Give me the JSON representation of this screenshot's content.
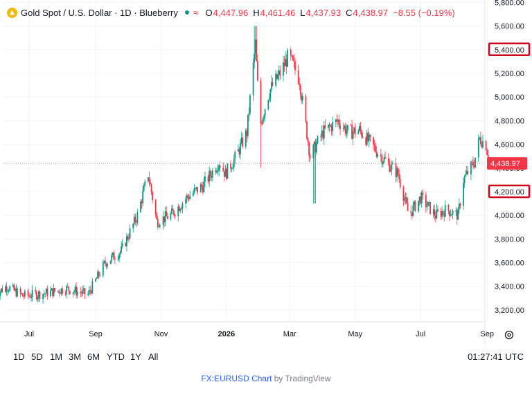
{
  "legend": {
    "title": "Gold Spot / U.S. Dollar · 1D · Blueberry",
    "open_label": "O",
    "open": "4,447.96",
    "high_label": "H",
    "high": "4,461.46",
    "low_label": "L",
    "low": "4,437.93",
    "close_label": "C",
    "close": "4,438.97",
    "change": "−8.55 (−0.19%)"
  },
  "time_ranges": [
    "1D",
    "5D",
    "1M",
    "3M",
    "6M",
    "YTD",
    "1Y",
    "All"
  ],
  "clock": "01:27:41 UTC",
  "footer": {
    "link": "FX:EURUSD Chart",
    "by": " by TradingView"
  },
  "colors": {
    "up": "#089981",
    "down": "#f23645",
    "highlight": "#d0021b",
    "grid": "#f0f3fa"
  },
  "chart_data": {
    "type": "candlestick",
    "y_ticks": [
      "5,800.00",
      "5,600.00",
      "5,400.00",
      "5,200.00",
      "5,000.00",
      "4,800.00",
      "4,600.00",
      "4,400.00",
      "4,200.00",
      "4,000.00",
      "3,800.00",
      "3,600.00",
      "3,400.00",
      "3,200.00"
    ],
    "y_tick_values": [
      5800,
      5600,
      5400,
      5200,
      5000,
      4800,
      4600,
      4400,
      4200,
      4000,
      3800,
      3600,
      3400,
      3200
    ],
    "highlighted_ticks": [
      "5,400.00",
      "4,200.00"
    ],
    "x_ticks": [
      "Jul",
      "Sep",
      "Nov",
      "2026",
      "Mar",
      "May",
      "Jul",
      "Sep"
    ],
    "x_tick_dates": [
      "2025-07-01",
      "2025-09-01",
      "2025-11-01",
      "2026-01-01",
      "2026-03-01",
      "2026-05-01",
      "2026-07-01",
      "2026-09-01"
    ],
    "last_price_label": "4,438.97",
    "last_price": 4438.97,
    "close_path": [
      [
        "2025-05-30",
        3330
      ],
      [
        "2025-06-10",
        3400
      ],
      [
        "2025-06-25",
        3320
      ],
      [
        "2025-07-15",
        3340
      ],
      [
        "2025-08-05",
        3380
      ],
      [
        "2025-08-25",
        3330
      ],
      [
        "2025-09-10",
        3600
      ],
      [
        "2025-09-25",
        3700
      ],
      [
        "2025-10-10",
        4000
      ],
      [
        "2025-10-20",
        4350
      ],
      [
        "2025-10-28",
        3950
      ],
      [
        "2025-11-10",
        4000
      ],
      [
        "2025-11-25",
        4150
      ],
      [
        "2025-12-10",
        4250
      ],
      [
        "2025-12-25",
        4450
      ],
      [
        "2025-12-31",
        4350
      ],
      [
        "2026-01-10",
        4500
      ],
      [
        "2026-01-20",
        4700
      ],
      [
        "2026-01-28",
        5450
      ],
      [
        "2026-02-01",
        4750
      ],
      [
        "2026-02-10",
        5050
      ],
      [
        "2026-02-20",
        5200
      ],
      [
        "2026-02-28",
        5350
      ],
      [
        "2026-03-10",
        5150
      ],
      [
        "2026-03-20",
        4500
      ],
      [
        "2026-04-01",
        4700
      ],
      [
        "2026-04-15",
        4800
      ],
      [
        "2026-04-25",
        4700
      ],
      [
        "2026-05-05",
        4720
      ],
      [
        "2026-05-25",
        4500
      ],
      [
        "2026-06-10",
        4350
      ],
      [
        "2026-06-20",
        4000
      ],
      [
        "2026-07-01",
        4150
      ],
      [
        "2026-07-15",
        4000
      ],
      [
        "2026-07-25",
        4050
      ],
      [
        "2026-08-05",
        4000
      ],
      [
        "2026-08-10",
        4300
      ],
      [
        "2026-08-20",
        4450
      ],
      [
        "2026-08-25",
        4650
      ],
      [
        "2026-08-31",
        4600
      ],
      [
        "2026-09-03",
        4438.97
      ]
    ],
    "spikes": [
      [
        "2026-01-28",
        5600
      ],
      [
        "2026-02-01",
        4400
      ],
      [
        "2026-03-24",
        4100
      ],
      [
        "2026-03-01",
        5420
      ]
    ]
  }
}
